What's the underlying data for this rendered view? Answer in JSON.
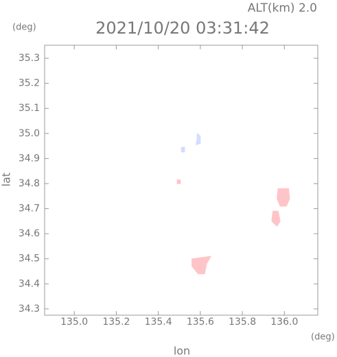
{
  "chart_data": {
    "type": "polygon",
    "corner_label": "ALT(km) 2.0",
    "title": "2021/10/20 03:31:42",
    "y_unit": "(deg)",
    "x_unit": "(deg)",
    "x_label": "lon",
    "y_label": "lat",
    "xlim": [
      134.859,
      136.159
    ],
    "ylim": [
      34.275,
      35.352
    ],
    "xticks": [
      {
        "value": 135.0,
        "label": "135.0"
      },
      135.2,
      135.4,
      135.6,
      135.8,
      {
        "value": 136.0,
        "label": "136.0"
      }
    ],
    "yticks": [
      34.3,
      34.4,
      34.5,
      34.6,
      34.7,
      34.8,
      34.9,
      {
        "value": 35.0,
        "label": "35.0"
      },
      35.1,
      35.2,
      35.3
    ],
    "series": [
      {
        "color": "#ffc4c8",
        "x": [
          135.56,
          135.65,
          135.63,
          135.62,
          135.59,
          135.56
        ],
        "y": [
          34.5,
          34.51,
          34.48,
          34.44,
          34.44,
          34.47
        ]
      },
      {
        "color": "#ffc4c8",
        "x": [
          135.97,
          136.02,
          136.025,
          136.01,
          135.98,
          135.965
        ],
        "y": [
          34.78,
          34.78,
          34.74,
          34.71,
          34.71,
          34.74
        ]
      },
      {
        "color": "#ffc4c8",
        "x": [
          135.945,
          135.97,
          135.98,
          135.965,
          135.94
        ],
        "y": [
          34.69,
          34.69,
          34.65,
          34.63,
          34.65
        ]
      },
      {
        "color": "#ffc4c8",
        "x": [
          135.49,
          135.505,
          135.505,
          135.49
        ],
        "y": [
          34.815,
          34.815,
          34.8,
          34.8
        ]
      },
      {
        "color": "#d4dcff",
        "x": [
          135.585,
          135.6,
          135.6,
          135.58,
          135.585
        ],
        "y": [
          35.0,
          34.99,
          34.96,
          34.955,
          34.98
        ]
      },
      {
        "color": "#d4dcff",
        "x": [
          135.51,
          135.525,
          135.525,
          135.51
        ],
        "y": [
          34.945,
          34.945,
          34.926,
          34.926
        ]
      }
    ]
  }
}
